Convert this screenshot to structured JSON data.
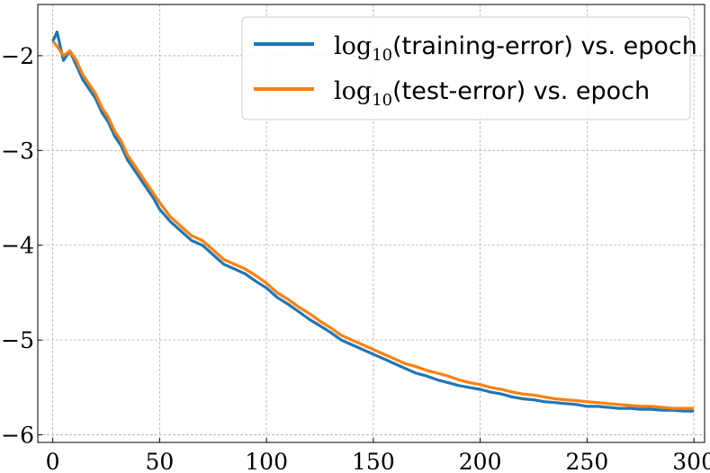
{
  "chart_data": {
    "type": "line",
    "title": "",
    "xlabel": "",
    "ylabel": "",
    "xlim": [
      -7,
      305
    ],
    "ylim": [
      -6.08,
      -1.46
    ],
    "xticks": [
      0,
      50,
      100,
      150,
      200,
      250,
      300
    ],
    "yticks": [
      -2,
      -3,
      -4,
      -5,
      -6
    ],
    "xtick_labels": [
      "0",
      "50",
      "100",
      "150",
      "200",
      "250",
      "300"
    ],
    "ytick_labels": [
      "−2",
      "−3",
      "−4",
      "−5",
      "−6"
    ],
    "grid": true,
    "legend_position": "top-right",
    "series": [
      {
        "name": "log10(training-error) vs. epoch",
        "legend_prefix": "log",
        "legend_subscript": "10",
        "legend_suffix": "(training-error) vs. epoch",
        "color": "#1f77b4",
        "x": [
          0,
          2,
          5,
          8,
          11,
          14,
          17,
          20,
          23,
          26,
          29,
          32,
          35,
          38,
          41,
          44,
          47,
          50,
          55,
          60,
          65,
          70,
          75,
          80,
          85,
          90,
          95,
          100,
          105,
          110,
          115,
          120,
          125,
          130,
          135,
          140,
          145,
          150,
          155,
          160,
          165,
          170,
          175,
          180,
          185,
          190,
          195,
          200,
          205,
          210,
          215,
          220,
          225,
          230,
          235,
          240,
          245,
          250,
          255,
          260,
          265,
          270,
          275,
          280,
          285,
          290,
          295,
          300
        ],
        "y": [
          -1.85,
          -1.75,
          -2.05,
          -1.95,
          -2.1,
          -2.25,
          -2.35,
          -2.45,
          -2.6,
          -2.7,
          -2.85,
          -2.95,
          -3.1,
          -3.2,
          -3.3,
          -3.4,
          -3.5,
          -3.62,
          -3.75,
          -3.85,
          -3.95,
          -4.0,
          -4.1,
          -4.2,
          -4.25,
          -4.3,
          -4.38,
          -4.45,
          -4.55,
          -4.62,
          -4.7,
          -4.78,
          -4.85,
          -4.92,
          -5.0,
          -5.05,
          -5.1,
          -5.15,
          -5.2,
          -5.25,
          -5.3,
          -5.35,
          -5.38,
          -5.42,
          -5.45,
          -5.48,
          -5.5,
          -5.52,
          -5.55,
          -5.57,
          -5.6,
          -5.62,
          -5.63,
          -5.65,
          -5.66,
          -5.67,
          -5.68,
          -5.7,
          -5.7,
          -5.71,
          -5.72,
          -5.72,
          -5.73,
          -5.73,
          -5.74,
          -5.74,
          -5.75,
          -5.75
        ]
      },
      {
        "name": "log10(test-error) vs. epoch",
        "legend_prefix": "log",
        "legend_subscript": "10",
        "legend_suffix": "(test-error) vs. epoch",
        "color": "#ff7f0e",
        "x": [
          0,
          2,
          5,
          8,
          11,
          14,
          17,
          20,
          23,
          26,
          29,
          32,
          35,
          38,
          41,
          44,
          47,
          50,
          55,
          60,
          65,
          70,
          75,
          80,
          85,
          90,
          95,
          100,
          105,
          110,
          115,
          120,
          125,
          130,
          135,
          140,
          145,
          150,
          155,
          160,
          165,
          170,
          175,
          180,
          185,
          190,
          195,
          200,
          205,
          210,
          215,
          220,
          225,
          230,
          235,
          240,
          245,
          250,
          255,
          260,
          265,
          270,
          275,
          280,
          285,
          290,
          295,
          300
        ],
        "y": [
          -1.85,
          -1.9,
          -2.0,
          -1.95,
          -2.05,
          -2.2,
          -2.3,
          -2.4,
          -2.55,
          -2.65,
          -2.8,
          -2.9,
          -3.05,
          -3.15,
          -3.25,
          -3.35,
          -3.45,
          -3.55,
          -3.7,
          -3.8,
          -3.9,
          -3.95,
          -4.05,
          -4.15,
          -4.2,
          -4.25,
          -4.32,
          -4.4,
          -4.5,
          -4.57,
          -4.65,
          -4.72,
          -4.8,
          -4.87,
          -4.95,
          -5.0,
          -5.05,
          -5.1,
          -5.15,
          -5.2,
          -5.25,
          -5.28,
          -5.32,
          -5.35,
          -5.38,
          -5.42,
          -5.45,
          -5.47,
          -5.5,
          -5.52,
          -5.55,
          -5.57,
          -5.58,
          -5.6,
          -5.62,
          -5.63,
          -5.64,
          -5.65,
          -5.66,
          -5.67,
          -5.68,
          -5.69,
          -5.7,
          -5.7,
          -5.71,
          -5.72,
          -5.72,
          -5.72
        ]
      }
    ]
  }
}
